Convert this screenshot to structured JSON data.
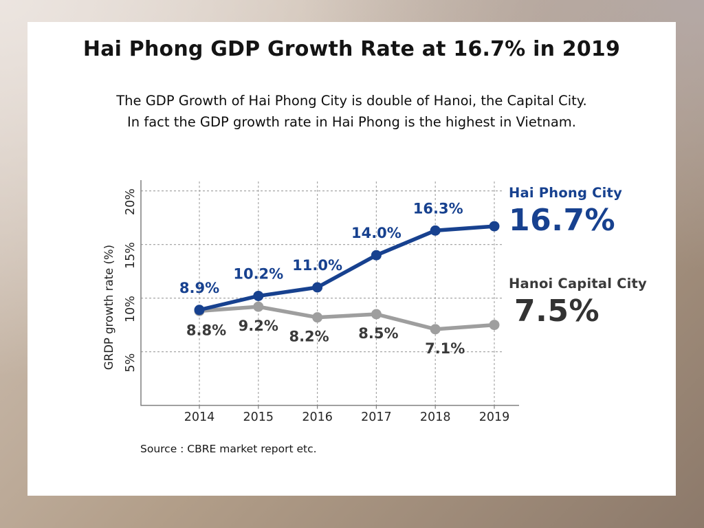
{
  "page": {
    "title": "Hai Phong GDP Growth Rate at 16.7% in 2019",
    "subtitle_line1": "The GDP Growth of Hai Phong City is double of Hanoi, the Capital City.",
    "subtitle_line2": "In fact the GDP growth rate in Hai Phong is the highest in Vietnam.",
    "source": "Source : CBRE market report etc."
  },
  "colors": {
    "card_background": "#ffffff",
    "hai_phong_blue": "#17418f",
    "hanoi_line_gray": "#9e9e9e",
    "hanoi_text_gray": "#3a3a3a",
    "axis": "#7f7f7f",
    "gridline": "#a6a6a6"
  },
  "chart_data": {
    "type": "line",
    "title": "",
    "xlabel": "",
    "ylabel": "GRDP growth rate (%)",
    "categories": [
      "2014",
      "2015",
      "2016",
      "2017",
      "2018",
      "2019"
    ],
    "series": [
      {
        "name": "Hai Phong City",
        "color": "#17418f",
        "label_color": "#17418f",
        "value_color": "#17418f",
        "values": [
          8.9,
          10.2,
          11.0,
          14.0,
          16.3,
          16.7
        ],
        "labels": [
          "8.9%",
          "10.2%",
          "11.0%",
          "14.0%",
          "16.3%",
          ""
        ],
        "end_label": "16.7%"
      },
      {
        "name": "Hanoi Capital City",
        "color": "#9e9e9e",
        "label_color": "#3a3a3a",
        "value_color": "#333333",
        "values": [
          8.8,
          9.2,
          8.2,
          8.5,
          7.1,
          7.5
        ],
        "labels": [
          "8.8%",
          "9.2%",
          "8.2%",
          "8.5%",
          "7.1%",
          ""
        ],
        "end_label": "7.5%"
      }
    ],
    "yticks": [
      5,
      10,
      15,
      20
    ],
    "ytick_labels": [
      "5%",
      "10%",
      "15%",
      "20%"
    ],
    "ylim": [
      0,
      21
    ],
    "grid": "dashed",
    "legend_position": "right"
  }
}
